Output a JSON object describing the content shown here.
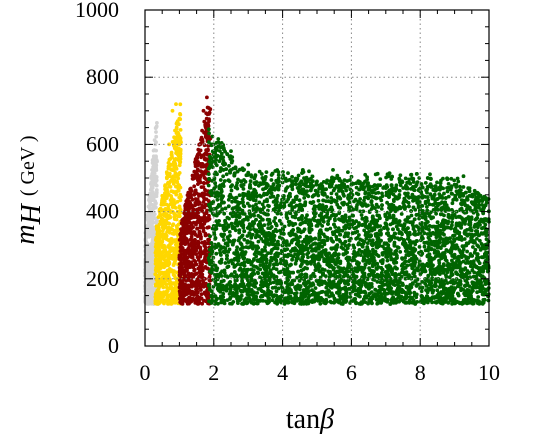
{
  "chart_data": {
    "type": "scatter",
    "xlabel": {
      "prefix": "tan",
      "symbol": "β"
    },
    "ylabel": {
      "symbol": "m",
      "subscript": "H",
      "unit": "( GeV )"
    },
    "xlim": [
      0,
      10
    ],
    "ylim": [
      0,
      1000
    ],
    "xticks": [
      0,
      2,
      4,
      6,
      8,
      10
    ],
    "yticks": [
      0,
      200,
      400,
      600,
      800,
      1000
    ],
    "grid": "dotted",
    "series": [
      {
        "color": "#d3d3d3",
        "region": {
          "x_min": 0.0,
          "x_max": 0.35,
          "y_min": 125,
          "y_max": 690
        },
        "points": [
          [
            0.05,
            140
          ],
          [
            0.1,
            200
          ],
          [
            0.15,
            300
          ],
          [
            0.2,
            420
          ],
          [
            0.25,
            520
          ],
          [
            0.3,
            600
          ],
          [
            0.32,
            650
          ],
          [
            0.28,
            250
          ],
          [
            0.18,
            380
          ],
          [
            0.12,
            160
          ]
        ]
      },
      {
        "color": "#ffd700",
        "region": {
          "x_min": 0.3,
          "x_max": 1.05,
          "y_min": 125,
          "y_max": 740
        },
        "points": [
          [
            0.4,
            150
          ],
          [
            0.5,
            300
          ],
          [
            0.6,
            450
          ],
          [
            0.7,
            600
          ],
          [
            0.8,
            700
          ],
          [
            0.9,
            720
          ],
          [
            1.0,
            600
          ],
          [
            0.55,
            200
          ],
          [
            0.75,
            350
          ],
          [
            0.95,
            400
          ]
        ]
      },
      {
        "color": "#8b0000",
        "region": {
          "x_min": 1.0,
          "x_max": 1.9,
          "y_min": 125,
          "y_max": 750
        },
        "points": [
          [
            1.1,
            150
          ],
          [
            1.3,
            300
          ],
          [
            1.5,
            500
          ],
          [
            1.7,
            700
          ],
          [
            1.8,
            740
          ],
          [
            1.6,
            600
          ],
          [
            1.2,
            250
          ],
          [
            1.4,
            400
          ],
          [
            1.85,
            550
          ],
          [
            1.05,
            180
          ]
        ]
      },
      {
        "color": "#006400",
        "region": {
          "x_min": 1.85,
          "x_max": 10.0,
          "y_min": 125,
          "y_max": 650
        },
        "points": [
          [
            2,
            600
          ],
          [
            2.5,
            580
          ],
          [
            3,
            540
          ],
          [
            4,
            500
          ],
          [
            5,
            490
          ],
          [
            6,
            480
          ],
          [
            7,
            470
          ],
          [
            8,
            460
          ],
          [
            9,
            480
          ],
          [
            9.8,
            420
          ],
          [
            3.5,
            200
          ],
          [
            6.5,
            150
          ],
          [
            8.5,
            300
          ]
        ]
      }
    ]
  }
}
